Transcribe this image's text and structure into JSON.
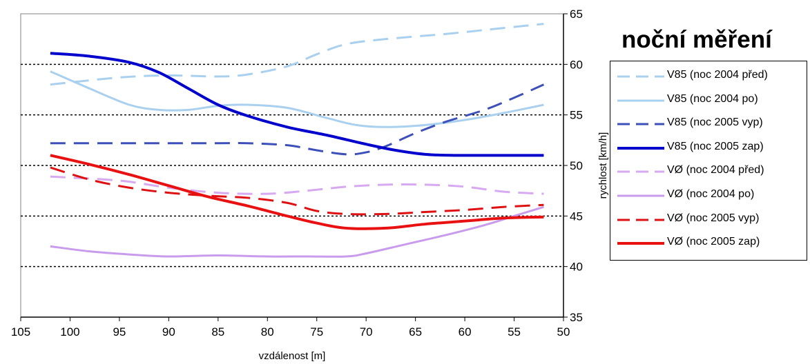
{
  "title": "noční měření",
  "chart_data": {
    "type": "line",
    "xlabel": "vzdálenost [m]",
    "ylabel": "rychlost [km/h]",
    "xlim": [
      105,
      50
    ],
    "ylim": [
      35,
      65
    ],
    "xticks": [
      105,
      100,
      95,
      90,
      85,
      80,
      75,
      70,
      65,
      60,
      55,
      50
    ],
    "yticks": [
      35,
      40,
      45,
      50,
      55,
      60,
      65
    ],
    "gridlines_y": [
      40,
      45,
      50,
      55,
      60
    ],
    "legend_position": "right",
    "series": [
      {
        "name": "V85 (noc 2004 před)",
        "color": "#a9d0ee",
        "dash": true,
        "width": 3,
        "x": [
          102,
          95,
          90,
          85,
          82,
          78,
          75,
          72,
          68,
          62,
          57,
          52
        ],
        "y": [
          58,
          58.7,
          58.9,
          58.8,
          59,
          59.8,
          61,
          62,
          62.5,
          63,
          63.5,
          64
        ]
      },
      {
        "name": "V85 (noc 2004 po)",
        "color": "#a9d0ee",
        "dash": false,
        "width": 3,
        "x": [
          102,
          98,
          94,
          91,
          88,
          85,
          82,
          78,
          74,
          71,
          68,
          64,
          60,
          56,
          52
        ],
        "y": [
          59.3,
          57.6,
          56,
          55.5,
          55.5,
          55.9,
          56,
          55.7,
          54.7,
          54,
          53.8,
          54,
          54.5,
          55.2,
          56
        ]
      },
      {
        "name": "V85 (noc 2005 vyp)",
        "color": "#3d4fb8",
        "dash": true,
        "width": 3,
        "x": [
          102,
          95,
          90,
          85,
          82,
          78,
          75,
          72,
          70,
          68,
          65,
          62,
          58,
          55,
          52
        ],
        "y": [
          52.2,
          52.2,
          52.2,
          52.2,
          52.2,
          52,
          51.5,
          51.1,
          51.3,
          51.9,
          53.2,
          54.3,
          55.5,
          56.7,
          58
        ]
      },
      {
        "name": "V85 (noc 2005 zap)",
        "color": "#0000cc",
        "dash": false,
        "width": 4,
        "x": [
          102,
          98,
          94,
          91,
          88,
          85,
          82,
          78,
          74,
          70,
          67,
          64,
          61,
          57,
          52
        ],
        "y": [
          61.1,
          60.8,
          60.2,
          59.2,
          57.6,
          56,
          54.9,
          53.8,
          53,
          52.1,
          51.5,
          51.1,
          51,
          51,
          51
        ]
      },
      {
        "name": "VØ (noc 2004 před)",
        "color": "#d6a9f0",
        "dash": true,
        "width": 3,
        "x": [
          102,
          95,
          90,
          85,
          80,
          76,
          72,
          68,
          64,
          60,
          56,
          52
        ],
        "y": [
          48.9,
          48.5,
          47.8,
          47.3,
          47.2,
          47.5,
          47.9,
          48.1,
          48.1,
          47.9,
          47.4,
          47.2
        ]
      },
      {
        "name": "VØ (noc 2004 po)",
        "color": "#c89bec",
        "dash": false,
        "width": 3,
        "x": [
          102,
          98,
          94,
          90,
          85,
          80,
          76,
          72,
          70,
          66,
          62,
          58,
          55,
          52
        ],
        "y": [
          42,
          41.5,
          41.2,
          41,
          41.1,
          41,
          41,
          41,
          41.3,
          42.2,
          43.1,
          44.1,
          45,
          45.9
        ]
      },
      {
        "name": "VØ (noc 2005 vyp)",
        "color": "#dd1111",
        "dash": true,
        "width": 3,
        "x": [
          102,
          98,
          94,
          90,
          86,
          82,
          78,
          75,
          72,
          68,
          64,
          60,
          56,
          52
        ],
        "y": [
          49.8,
          48.6,
          47.8,
          47.3,
          47,
          46.8,
          46.3,
          45.5,
          45.2,
          45.2,
          45.4,
          45.6,
          45.9,
          46.1
        ]
      },
      {
        "name": "VØ (noc 2005 zap)",
        "color": "#e81010",
        "dash": false,
        "width": 4,
        "x": [
          102,
          98,
          94,
          90,
          86,
          82,
          78,
          75,
          72,
          68,
          64,
          60,
          56,
          52
        ],
        "y": [
          51,
          50.1,
          49.1,
          48,
          46.9,
          46,
          45,
          44.3,
          43.8,
          43.8,
          44.2,
          44.5,
          44.8,
          44.9
        ]
      }
    ]
  }
}
